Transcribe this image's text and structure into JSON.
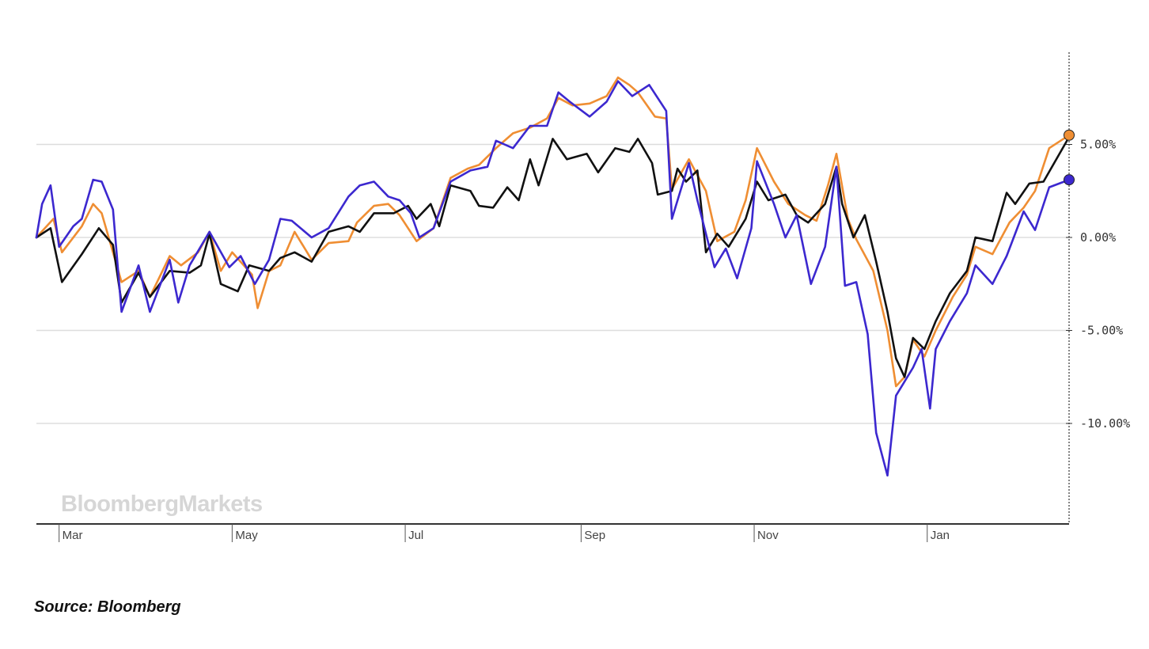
{
  "source": "Source: Bloomberg",
  "watermark": "BloombergMarkets",
  "chart_data": {
    "type": "line",
    "y_unit": "%",
    "ylim": [
      -15.0,
      10.0
    ],
    "y_ticks": [
      {
        "value": 5,
        "label": "5.00%"
      },
      {
        "value": 0,
        "label": "0.00%"
      },
      {
        "value": -5,
        "label": "-5.00%"
      },
      {
        "value": -10,
        "label": "-10.00%"
      }
    ],
    "x_ticks": [
      {
        "date": "2018-03-01",
        "label": "Mar"
      },
      {
        "date": "2018-05-01",
        "label": "May"
      },
      {
        "date": "2018-07-01",
        "label": "Jul"
      },
      {
        "date": "2018-09-01",
        "label": "Sep"
      },
      {
        "date": "2018-11-01",
        "label": "Nov"
      },
      {
        "date": "2019-01-01",
        "label": "Jan"
      }
    ],
    "x_range": [
      "2018-02-21",
      "2019-02-20"
    ],
    "grid": "horizontal",
    "legend": "none",
    "series": [
      {
        "color": "#ef8e33",
        "end_marker": true,
        "points": [
          [
            "2018-02-21",
            0.0
          ],
          [
            "2018-02-27",
            1.0
          ],
          [
            "2018-03-02",
            -0.8
          ],
          [
            "2018-03-09",
            0.6
          ],
          [
            "2018-03-13",
            1.8
          ],
          [
            "2018-03-16",
            1.3
          ],
          [
            "2018-03-23",
            -2.4
          ],
          [
            "2018-03-29",
            -1.8
          ],
          [
            "2018-04-02",
            -3.2
          ],
          [
            "2018-04-09",
            -1.0
          ],
          [
            "2018-04-13",
            -1.5
          ],
          [
            "2018-04-19",
            -0.8
          ],
          [
            "2018-04-23",
            0.3
          ],
          [
            "2018-04-27",
            -1.8
          ],
          [
            "2018-05-01",
            -0.8
          ],
          [
            "2018-05-08",
            -2.0
          ],
          [
            "2018-05-10",
            -3.8
          ],
          [
            "2018-05-14",
            -1.8
          ],
          [
            "2018-05-18",
            -1.5
          ],
          [
            "2018-05-23",
            0.3
          ],
          [
            "2018-05-29",
            -1.2
          ],
          [
            "2018-06-04",
            -0.3
          ],
          [
            "2018-06-11",
            -0.2
          ],
          [
            "2018-06-14",
            0.8
          ],
          [
            "2018-06-20",
            1.7
          ],
          [
            "2018-06-25",
            1.8
          ],
          [
            "2018-06-29",
            1.2
          ],
          [
            "2018-07-05",
            -0.2
          ],
          [
            "2018-07-11",
            0.5
          ],
          [
            "2018-07-17",
            3.2
          ],
          [
            "2018-07-23",
            3.7
          ],
          [
            "2018-07-27",
            3.9
          ],
          [
            "2018-08-02",
            4.8
          ],
          [
            "2018-08-08",
            5.6
          ],
          [
            "2018-08-14",
            5.9
          ],
          [
            "2018-08-20",
            6.4
          ],
          [
            "2018-08-24",
            7.5
          ],
          [
            "2018-08-29",
            7.1
          ],
          [
            "2018-09-04",
            7.2
          ],
          [
            "2018-09-10",
            7.6
          ],
          [
            "2018-09-14",
            8.6
          ],
          [
            "2018-09-18",
            8.2
          ],
          [
            "2018-09-21",
            7.8
          ],
          [
            "2018-09-27",
            6.5
          ],
          [
            "2018-10-01",
            6.4
          ],
          [
            "2018-10-03",
            2.6
          ],
          [
            "2018-10-09",
            4.2
          ],
          [
            "2018-10-15",
            2.5
          ],
          [
            "2018-10-19",
            -0.2
          ],
          [
            "2018-10-25",
            0.3
          ],
          [
            "2018-10-29",
            2.0
          ],
          [
            "2018-11-02",
            4.8
          ],
          [
            "2018-11-08",
            3.0
          ],
          [
            "2018-11-13",
            1.8
          ],
          [
            "2018-11-19",
            1.2
          ],
          [
            "2018-11-23",
            0.9
          ],
          [
            "2018-11-27",
            2.8
          ],
          [
            "2018-11-30",
            4.5
          ],
          [
            "2018-12-04",
            1.0
          ],
          [
            "2018-12-07",
            -0.1
          ],
          [
            "2018-12-13",
            -1.8
          ],
          [
            "2018-12-18",
            -5.0
          ],
          [
            "2018-12-21",
            -8.0
          ],
          [
            "2018-12-24",
            -7.5
          ],
          [
            "2018-12-27",
            -5.5
          ],
          [
            "2018-12-31",
            -6.4
          ],
          [
            "2019-01-04",
            -5.0
          ],
          [
            "2019-01-10",
            -3.2
          ],
          [
            "2019-01-15",
            -2.0
          ],
          [
            "2019-01-18",
            -0.5
          ],
          [
            "2019-01-24",
            -0.9
          ],
          [
            "2019-01-30",
            0.8
          ],
          [
            "2019-02-04",
            1.6
          ],
          [
            "2019-02-08",
            2.5
          ],
          [
            "2019-02-13",
            4.8
          ],
          [
            "2019-02-20",
            5.5
          ]
        ]
      },
      {
        "color": "#111111",
        "end_marker": false,
        "points": [
          [
            "2018-02-21",
            0.0
          ],
          [
            "2018-02-26",
            0.5
          ],
          [
            "2018-03-02",
            -2.4
          ],
          [
            "2018-03-09",
            -0.9
          ],
          [
            "2018-03-15",
            0.5
          ],
          [
            "2018-03-20",
            -0.4
          ],
          [
            "2018-03-23",
            -3.5
          ],
          [
            "2018-03-29",
            -1.9
          ],
          [
            "2018-04-02",
            -3.2
          ],
          [
            "2018-04-09",
            -1.8
          ],
          [
            "2018-04-16",
            -1.9
          ],
          [
            "2018-04-20",
            -1.5
          ],
          [
            "2018-04-23",
            0.2
          ],
          [
            "2018-04-27",
            -2.5
          ],
          [
            "2018-05-03",
            -2.9
          ],
          [
            "2018-05-07",
            -1.5
          ],
          [
            "2018-05-14",
            -1.8
          ],
          [
            "2018-05-18",
            -1.1
          ],
          [
            "2018-05-23",
            -0.8
          ],
          [
            "2018-05-29",
            -1.3
          ],
          [
            "2018-06-04",
            0.3
          ],
          [
            "2018-06-11",
            0.6
          ],
          [
            "2018-06-15",
            0.3
          ],
          [
            "2018-06-20",
            1.3
          ],
          [
            "2018-06-27",
            1.3
          ],
          [
            "2018-07-02",
            1.7
          ],
          [
            "2018-07-05",
            1.0
          ],
          [
            "2018-07-10",
            1.8
          ],
          [
            "2018-07-13",
            0.6
          ],
          [
            "2018-07-17",
            2.8
          ],
          [
            "2018-07-24",
            2.5
          ],
          [
            "2018-07-27",
            1.7
          ],
          [
            "2018-08-01",
            1.6
          ],
          [
            "2018-08-06",
            2.7
          ],
          [
            "2018-08-10",
            2.0
          ],
          [
            "2018-08-14",
            4.2
          ],
          [
            "2018-08-17",
            2.8
          ],
          [
            "2018-08-22",
            5.3
          ],
          [
            "2018-08-27",
            4.2
          ],
          [
            "2018-09-03",
            4.5
          ],
          [
            "2018-09-07",
            3.5
          ],
          [
            "2018-09-13",
            4.8
          ],
          [
            "2018-09-18",
            4.6
          ],
          [
            "2018-09-21",
            5.3
          ],
          [
            "2018-09-26",
            4.0
          ],
          [
            "2018-09-28",
            2.3
          ],
          [
            "2018-10-03",
            2.5
          ],
          [
            "2018-10-05",
            3.7
          ],
          [
            "2018-10-08",
            3.0
          ],
          [
            "2018-10-12",
            3.6
          ],
          [
            "2018-10-15",
            -0.8
          ],
          [
            "2018-10-19",
            0.2
          ],
          [
            "2018-10-23",
            -0.5
          ],
          [
            "2018-10-29",
            1.0
          ],
          [
            "2018-11-02",
            3.0
          ],
          [
            "2018-11-06",
            2.0
          ],
          [
            "2018-11-12",
            2.3
          ],
          [
            "2018-11-16",
            1.2
          ],
          [
            "2018-11-20",
            0.8
          ],
          [
            "2018-11-26",
            1.8
          ],
          [
            "2018-11-30",
            3.8
          ],
          [
            "2018-12-02",
            1.8
          ],
          [
            "2018-12-06",
            0.0
          ],
          [
            "2018-12-10",
            1.2
          ],
          [
            "2018-12-14",
            -1.3
          ],
          [
            "2018-12-18",
            -4.0
          ],
          [
            "2018-12-21",
            -6.5
          ],
          [
            "2018-12-24",
            -7.5
          ],
          [
            "2018-12-27",
            -5.4
          ],
          [
            "2018-12-31",
            -6.0
          ],
          [
            "2019-01-04",
            -4.5
          ],
          [
            "2019-01-09",
            -3.0
          ],
          [
            "2019-01-15",
            -1.8
          ],
          [
            "2019-01-18",
            0.0
          ],
          [
            "2019-01-24",
            -0.2
          ],
          [
            "2019-01-29",
            2.4
          ],
          [
            "2019-02-01",
            1.8
          ],
          [
            "2019-02-06",
            2.9
          ],
          [
            "2019-02-11",
            3.0
          ],
          [
            "2019-02-20",
            5.4
          ]
        ]
      },
      {
        "color": "#3c28cf",
        "end_marker": true,
        "points": [
          [
            "2018-02-21",
            0.0
          ],
          [
            "2018-02-23",
            1.8
          ],
          [
            "2018-02-26",
            2.8
          ],
          [
            "2018-03-01",
            -0.5
          ],
          [
            "2018-03-06",
            0.6
          ],
          [
            "2018-03-09",
            1.0
          ],
          [
            "2018-03-13",
            3.1
          ],
          [
            "2018-03-16",
            3.0
          ],
          [
            "2018-03-20",
            1.5
          ],
          [
            "2018-03-23",
            -4.0
          ],
          [
            "2018-03-29",
            -1.5
          ],
          [
            "2018-04-02",
            -4.0
          ],
          [
            "2018-04-09",
            -1.2
          ],
          [
            "2018-04-12",
            -3.5
          ],
          [
            "2018-04-16",
            -1.5
          ],
          [
            "2018-04-23",
            0.3
          ],
          [
            "2018-04-30",
            -1.6
          ],
          [
            "2018-05-04",
            -1.0
          ],
          [
            "2018-05-09",
            -2.5
          ],
          [
            "2018-05-14",
            -1.2
          ],
          [
            "2018-05-18",
            1.0
          ],
          [
            "2018-05-22",
            0.9
          ],
          [
            "2018-05-29",
            0.0
          ],
          [
            "2018-06-04",
            0.5
          ],
          [
            "2018-06-11",
            2.2
          ],
          [
            "2018-06-15",
            2.8
          ],
          [
            "2018-06-20",
            3.0
          ],
          [
            "2018-06-25",
            2.2
          ],
          [
            "2018-06-29",
            2.0
          ],
          [
            "2018-07-03",
            1.3
          ],
          [
            "2018-07-06",
            0.0
          ],
          [
            "2018-07-11",
            0.5
          ],
          [
            "2018-07-17",
            3.0
          ],
          [
            "2018-07-24",
            3.6
          ],
          [
            "2018-07-30",
            3.8
          ],
          [
            "2018-08-02",
            5.2
          ],
          [
            "2018-08-08",
            4.8
          ],
          [
            "2018-08-14",
            6.0
          ],
          [
            "2018-08-20",
            6.0
          ],
          [
            "2018-08-24",
            7.8
          ],
          [
            "2018-08-28",
            7.3
          ],
          [
            "2018-09-04",
            6.5
          ],
          [
            "2018-09-10",
            7.3
          ],
          [
            "2018-09-14",
            8.4
          ],
          [
            "2018-09-19",
            7.6
          ],
          [
            "2018-09-25",
            8.2
          ],
          [
            "2018-10-01",
            6.8
          ],
          [
            "2018-10-03",
            1.0
          ],
          [
            "2018-10-09",
            4.0
          ],
          [
            "2018-10-12",
            2.0
          ],
          [
            "2018-10-18",
            -1.6
          ],
          [
            "2018-10-22",
            -0.6
          ],
          [
            "2018-10-26",
            -2.2
          ],
          [
            "2018-10-31",
            0.5
          ],
          [
            "2018-11-02",
            4.1
          ],
          [
            "2018-11-08",
            1.8
          ],
          [
            "2018-11-12",
            0.0
          ],
          [
            "2018-11-16",
            1.2
          ],
          [
            "2018-11-21",
            -2.5
          ],
          [
            "2018-11-26",
            -0.5
          ],
          [
            "2018-11-30",
            3.8
          ],
          [
            "2018-12-03",
            -2.6
          ],
          [
            "2018-12-07",
            -2.4
          ],
          [
            "2018-12-11",
            -5.2
          ],
          [
            "2018-12-14",
            -10.5
          ],
          [
            "2018-12-18",
            -12.8
          ],
          [
            "2018-12-21",
            -8.5
          ],
          [
            "2018-12-27",
            -7.0
          ],
          [
            "2018-12-30",
            -6.0
          ],
          [
            "2019-01-02",
            -9.2
          ],
          [
            "2019-01-04",
            -6.0
          ],
          [
            "2019-01-09",
            -4.5
          ],
          [
            "2019-01-15",
            -3.0
          ],
          [
            "2019-01-18",
            -1.5
          ],
          [
            "2019-01-24",
            -2.5
          ],
          [
            "2019-01-29",
            -1.0
          ],
          [
            "2019-02-04",
            1.4
          ],
          [
            "2019-02-08",
            0.4
          ],
          [
            "2019-02-13",
            2.7
          ],
          [
            "2019-02-20",
            3.1
          ]
        ]
      }
    ]
  }
}
